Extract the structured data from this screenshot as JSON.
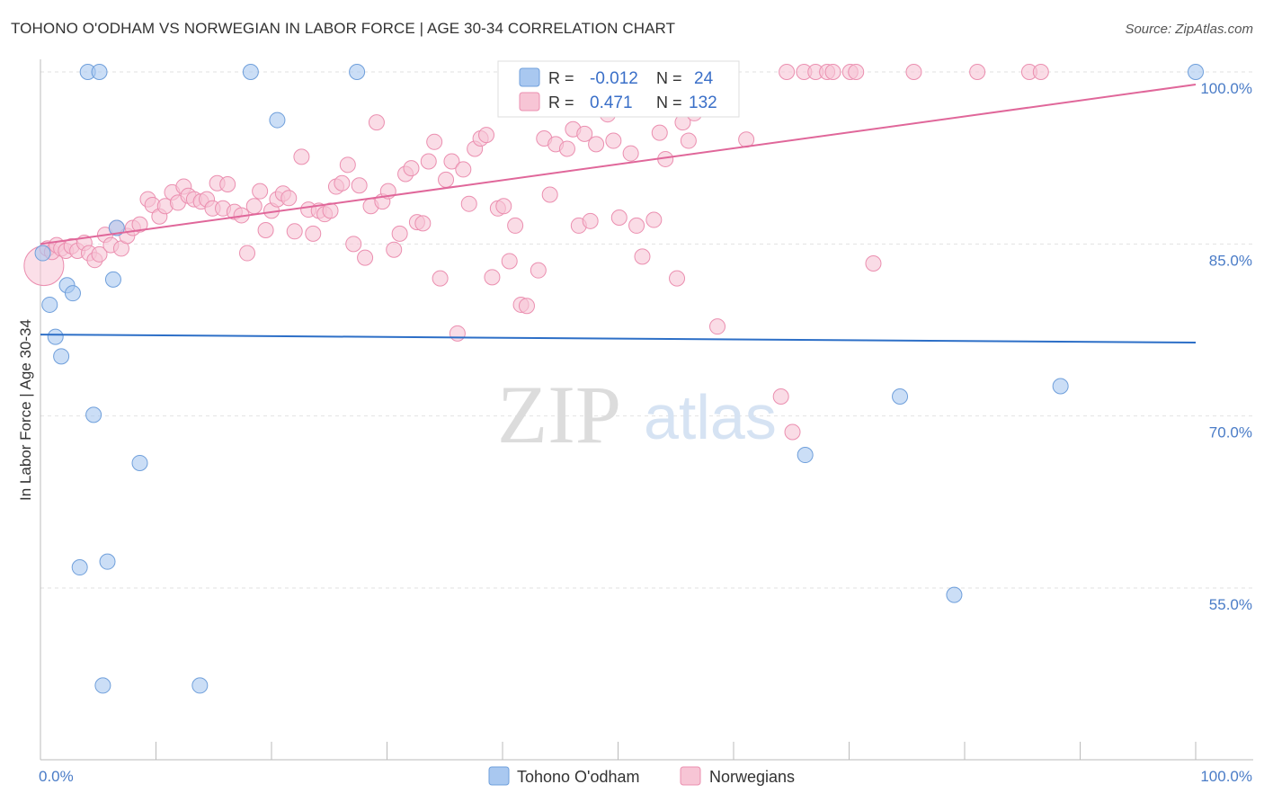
{
  "chart_data": {
    "type": "scatter",
    "title": "TOHONO O'ODHAM VS NORWEGIAN IN LABOR FORCE | AGE 30-34 CORRELATION CHART",
    "source": "Source: ZipAtlas.com",
    "xlabel": "",
    "ylabel": "In Labor Force | Age 30-34",
    "xlim": [
      0,
      100
    ],
    "ylim": [
      40,
      101.5
    ],
    "x_tick_labels": {
      "left": "0.0%",
      "right": "100.0%"
    },
    "y_ticks": [
      {
        "value": 100,
        "label": "100.0%"
      },
      {
        "value": 85,
        "label": "85.0%"
      },
      {
        "value": 70,
        "label": "70.0%"
      },
      {
        "value": 55,
        "label": "55.0%"
      }
    ],
    "grid": true,
    "watermark": {
      "zip": "ZIP",
      "atlas": "atlas"
    },
    "legend": {
      "r_label": "R =",
      "n_label": "N =",
      "entries": [
        {
          "r": "-0.012",
          "n": "24"
        },
        {
          "r": "0.471",
          "n": "132"
        }
      ]
    },
    "series": [
      {
        "name": "Tohono O'odham",
        "color": "#a9c8f0",
        "stroke": "#6f9fdb",
        "line_color": "#2d6fc7",
        "trend": [
          [
            0,
            77.1
          ],
          [
            100,
            76.4
          ]
        ],
        "points": [
          [
            0.2,
            84.2
          ],
          [
            0.8,
            79.7
          ],
          [
            1.3,
            76.9
          ],
          [
            1.8,
            75.2
          ],
          [
            2.3,
            81.4
          ],
          [
            2.8,
            80.7
          ],
          [
            3.4,
            56.8
          ],
          [
            4.1,
            100
          ],
          [
            4.6,
            70.1
          ],
          [
            5.1,
            100
          ],
          [
            5.4,
            46.5
          ],
          [
            5.8,
            57.3
          ],
          [
            6.3,
            81.9
          ],
          [
            6.6,
            86.4
          ],
          [
            8.6,
            65.9
          ],
          [
            13.8,
            46.5
          ],
          [
            18.2,
            100
          ],
          [
            20.5,
            95.8
          ],
          [
            27.4,
            100
          ],
          [
            66.2,
            66.6
          ],
          [
            74.4,
            71.7
          ],
          [
            79.1,
            54.4
          ],
          [
            88.3,
            72.6
          ],
          [
            100,
            100
          ]
        ]
      },
      {
        "name": "Norwegians",
        "color": "#f7c5d5",
        "stroke": "#eb8fb0",
        "line_color": "#e0679a",
        "trend": [
          [
            0,
            85.0
          ],
          [
            100,
            98.9
          ]
        ],
        "points": [
          [
            0.3,
            83.1
          ],
          [
            0.6,
            84.6
          ],
          [
            1.0,
            84.3
          ],
          [
            1.4,
            84.9
          ],
          [
            1.8,
            84.6
          ],
          [
            2.2,
            84.4
          ],
          [
            2.7,
            84.8
          ],
          [
            3.2,
            84.4
          ],
          [
            3.8,
            85.1
          ],
          [
            4.2,
            84.2
          ],
          [
            4.7,
            83.6
          ],
          [
            5.1,
            84.1
          ],
          [
            5.6,
            85.8
          ],
          [
            6.1,
            84.9
          ],
          [
            6.6,
            86.4
          ],
          [
            7.0,
            84.6
          ],
          [
            7.5,
            85.7
          ],
          [
            8.0,
            86.4
          ],
          [
            8.6,
            86.7
          ],
          [
            9.3,
            88.9
          ],
          [
            9.7,
            88.4
          ],
          [
            10.3,
            87.4
          ],
          [
            10.8,
            88.3
          ],
          [
            11.4,
            89.5
          ],
          [
            11.9,
            88.6
          ],
          [
            12.4,
            90.0
          ],
          [
            12.8,
            89.2
          ],
          [
            13.3,
            88.9
          ],
          [
            13.9,
            88.7
          ],
          [
            14.4,
            88.9
          ],
          [
            14.9,
            88.1
          ],
          [
            15.3,
            90.3
          ],
          [
            15.8,
            88.1
          ],
          [
            16.2,
            90.2
          ],
          [
            16.8,
            87.8
          ],
          [
            17.4,
            87.5
          ],
          [
            17.9,
            84.2
          ],
          [
            18.5,
            88.3
          ],
          [
            19.0,
            89.6
          ],
          [
            19.5,
            86.2
          ],
          [
            20.0,
            87.9
          ],
          [
            20.5,
            88.9
          ],
          [
            21.0,
            89.4
          ],
          [
            21.5,
            89.0
          ],
          [
            22.0,
            86.1
          ],
          [
            22.6,
            92.6
          ],
          [
            23.2,
            88.0
          ],
          [
            23.6,
            85.9
          ],
          [
            24.1,
            87.9
          ],
          [
            24.6,
            87.6
          ],
          [
            25.1,
            87.9
          ],
          [
            25.6,
            90.0
          ],
          [
            26.1,
            90.3
          ],
          [
            26.6,
            91.9
          ],
          [
            27.1,
            85.0
          ],
          [
            27.6,
            90.1
          ],
          [
            28.1,
            83.8
          ],
          [
            28.6,
            88.3
          ],
          [
            29.1,
            95.6
          ],
          [
            29.6,
            88.7
          ],
          [
            30.1,
            89.6
          ],
          [
            30.6,
            84.5
          ],
          [
            31.1,
            85.9
          ],
          [
            31.6,
            91.1
          ],
          [
            32.1,
            91.6
          ],
          [
            32.6,
            86.9
          ],
          [
            33.1,
            86.8
          ],
          [
            33.6,
            92.2
          ],
          [
            34.1,
            93.9
          ],
          [
            34.6,
            82.0
          ],
          [
            35.1,
            90.6
          ],
          [
            35.6,
            92.2
          ],
          [
            36.1,
            77.2
          ],
          [
            36.6,
            91.5
          ],
          [
            37.1,
            88.5
          ],
          [
            37.6,
            93.3
          ],
          [
            38.1,
            94.2
          ],
          [
            38.6,
            94.5
          ],
          [
            39.1,
            82.1
          ],
          [
            39.6,
            88.1
          ],
          [
            40.1,
            88.3
          ],
          [
            40.6,
            83.5
          ],
          [
            41.1,
            86.6
          ],
          [
            41.6,
            79.7
          ],
          [
            42.1,
            79.6
          ],
          [
            42.6,
            100
          ],
          [
            43.1,
            82.7
          ],
          [
            43.6,
            94.2
          ],
          [
            44.1,
            89.3
          ],
          [
            44.6,
            93.7
          ],
          [
            45.1,
            100
          ],
          [
            45.6,
            93.3
          ],
          [
            46.1,
            95.0
          ],
          [
            46.6,
            86.6
          ],
          [
            47.1,
            94.6
          ],
          [
            47.6,
            87.0
          ],
          [
            48.1,
            93.7
          ],
          [
            48.6,
            100
          ],
          [
            49.1,
            96.3
          ],
          [
            49.6,
            94.0
          ],
          [
            50.1,
            87.3
          ],
          [
            50.6,
            100
          ],
          [
            51.1,
            92.9
          ],
          [
            51.6,
            86.6
          ],
          [
            52.1,
            83.9
          ],
          [
            52.6,
            100
          ],
          [
            53.1,
            87.1
          ],
          [
            53.6,
            94.7
          ],
          [
            54.1,
            92.4
          ],
          [
            54.6,
            100
          ],
          [
            55.1,
            82.0
          ],
          [
            55.6,
            95.6
          ],
          [
            56.1,
            94.0
          ],
          [
            56.6,
            96.4
          ],
          [
            57.1,
            100
          ],
          [
            58.6,
            77.8
          ],
          [
            59.1,
            100
          ],
          [
            61.1,
            94.1
          ],
          [
            64.1,
            71.7
          ],
          [
            64.6,
            100
          ],
          [
            65.1,
            68.6
          ],
          [
            66.1,
            100
          ],
          [
            67.1,
            100
          ],
          [
            68.1,
            100
          ],
          [
            68.6,
            100
          ],
          [
            70.1,
            100
          ],
          [
            70.6,
            100
          ],
          [
            75.6,
            100
          ],
          [
            72.1,
            83.3
          ],
          [
            81.1,
            100
          ],
          [
            85.6,
            100
          ],
          [
            86.6,
            100
          ]
        ]
      }
    ]
  }
}
